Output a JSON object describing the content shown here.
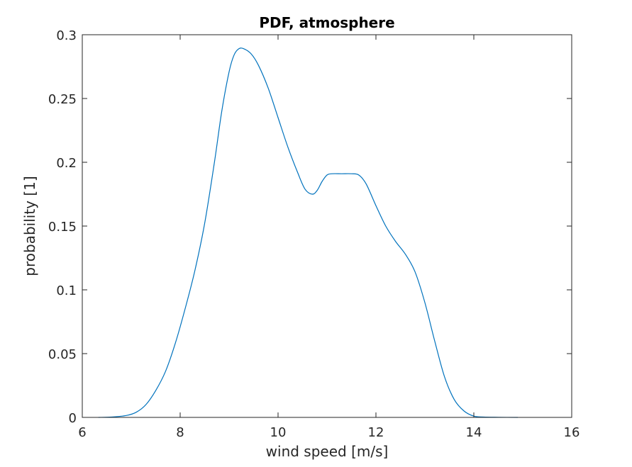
{
  "chart_data": {
    "type": "line",
    "title": "PDF, atmosphere",
    "xlabel": "wind speed [m/s]",
    "ylabel": "probability [1]",
    "xlim": [
      6,
      16
    ],
    "ylim": [
      0,
      0.3
    ],
    "xticks": [
      6,
      8,
      10,
      12,
      14,
      16
    ],
    "yticks": [
      0,
      0.05,
      0.1,
      0.15,
      0.2,
      0.25,
      0.3
    ],
    "xtick_labels": [
      "6",
      "8",
      "10",
      "12",
      "14",
      "16"
    ],
    "ytick_labels": [
      "0",
      "0.05",
      "0.1",
      "0.15",
      "0.2",
      "0.25",
      "0.3"
    ],
    "grid": false,
    "series": [
      {
        "color": "#0072BD",
        "x": [
          6.33,
          6.6,
          6.9,
          7.1,
          7.3,
          7.5,
          7.7,
          7.9,
          8.1,
          8.3,
          8.5,
          8.7,
          8.85,
          9.0,
          9.1,
          9.2,
          9.3,
          9.45,
          9.6,
          9.8,
          10.0,
          10.2,
          10.4,
          10.55,
          10.7,
          10.8,
          10.9,
          11.0,
          11.1,
          11.3,
          11.5,
          11.65,
          11.8,
          12.0,
          12.2,
          12.4,
          12.6,
          12.8,
          13.0,
          13.2,
          13.4,
          13.6,
          13.8,
          14.0,
          14.2,
          14.5,
          14.9
        ],
        "y": [
          0.0,
          0.0003,
          0.0015,
          0.004,
          0.01,
          0.021,
          0.036,
          0.058,
          0.085,
          0.115,
          0.152,
          0.2,
          0.24,
          0.271,
          0.284,
          0.289,
          0.289,
          0.285,
          0.276,
          0.258,
          0.235,
          0.212,
          0.192,
          0.179,
          0.175,
          0.178,
          0.185,
          0.19,
          0.191,
          0.191,
          0.191,
          0.19,
          0.183,
          0.166,
          0.15,
          0.138,
          0.128,
          0.114,
          0.09,
          0.06,
          0.032,
          0.014,
          0.005,
          0.001,
          0.0003,
          0.0001,
          0.0
        ]
      }
    ]
  }
}
